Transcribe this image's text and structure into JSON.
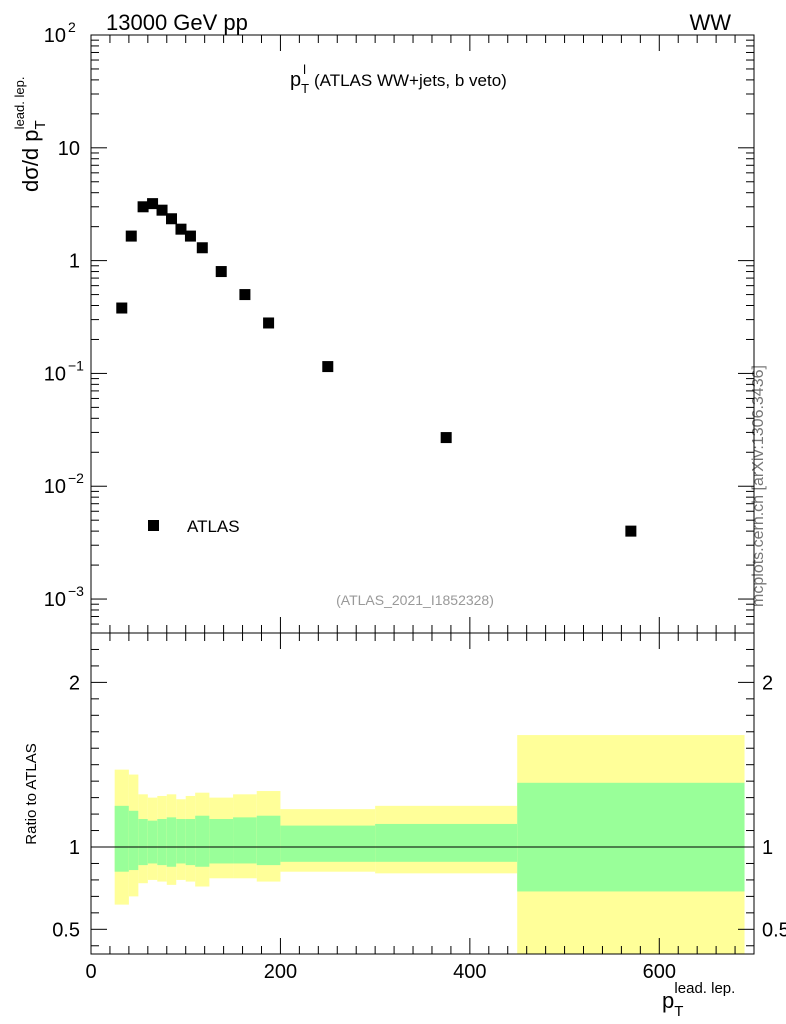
{
  "header": {
    "left": "13000 GeV pp",
    "right": "WW"
  },
  "side_label": "mcplots.cern.ch [arXiv:1306.3436]",
  "chart_data": [
    {
      "type": "scatter",
      "title": "p_T^l (ATLAS WW+jets, b veto)",
      "title_parts": {
        "main": "p",
        "sup": "l",
        "sub": "T",
        "rest": "(ATLAS WW+jets, b veto)"
      },
      "ylabel": "dσ/d p_T^lead. lep.",
      "ylabel_parts": {
        "prefix": "dσ/d p",
        "sup": "lead. lep.",
        "sub": "T"
      },
      "yscale": "log",
      "xlim": [
        0,
        700
      ],
      "ylim": [
        0.0005,
        100
      ],
      "y_ticks": [
        {
          "value": 100,
          "label": "10",
          "exp": "2"
        },
        {
          "value": 10,
          "label": "10",
          "exp": ""
        },
        {
          "value": 1,
          "label": "1",
          "exp": ""
        },
        {
          "value": 0.1,
          "label": "10",
          "exp": "−1"
        },
        {
          "value": 0.01,
          "label": "10",
          "exp": "−2"
        },
        {
          "value": 0.001,
          "label": "10",
          "exp": "−3"
        }
      ],
      "series": [
        {
          "name": "ATLAS",
          "color": "#000000",
          "marker": "square",
          "x": [
            32.5,
            42.5,
            55,
            65,
            75,
            85,
            95,
            105,
            117.5,
            137.5,
            162.5,
            187.5,
            250,
            375,
            570
          ],
          "y": [
            0.38,
            1.65,
            3.0,
            3.2,
            2.8,
            2.35,
            1.9,
            1.65,
            1.3,
            0.8,
            0.5,
            0.28,
            0.115,
            0.027,
            0.004
          ]
        }
      ],
      "legend": {
        "placement": "bottom-left",
        "entries": [
          "ATLAS"
        ]
      },
      "annotation": "(ATLAS_2021_I1852328)",
      "annotation_color": "#999999"
    },
    {
      "type": "area",
      "ylabel": "Ratio to ATLAS",
      "xlabel": "p_T^lead. lep.",
      "xlabel_parts": {
        "prefix": "p",
        "sup": "lead. lep.",
        "sub": "T"
      },
      "xlim": [
        0,
        700
      ],
      "ylim": [
        0.35,
        2.3
      ],
      "x_ticks": [
        0,
        200,
        400,
        600
      ],
      "y_ticks": [
        0.5,
        1,
        2
      ],
      "reference_line": 1.0,
      "bins": [
        {
          "lo": 25,
          "hi": 40,
          "inner": [
            0.85,
            1.25
          ],
          "outer": [
            0.65,
            1.47
          ]
        },
        {
          "lo": 40,
          "hi": 50,
          "inner": [
            0.86,
            1.22
          ],
          "outer": [
            0.7,
            1.44
          ]
        },
        {
          "lo": 50,
          "hi": 60,
          "inner": [
            0.89,
            1.17
          ],
          "outer": [
            0.78,
            1.32
          ]
        },
        {
          "lo": 60,
          "hi": 70,
          "inner": [
            0.9,
            1.16
          ],
          "outer": [
            0.8,
            1.3
          ]
        },
        {
          "lo": 70,
          "hi": 80,
          "inner": [
            0.89,
            1.17
          ],
          "outer": [
            0.79,
            1.31
          ]
        },
        {
          "lo": 80,
          "hi": 90,
          "inner": [
            0.88,
            1.18
          ],
          "outer": [
            0.77,
            1.32
          ]
        },
        {
          "lo": 90,
          "hi": 100,
          "inner": [
            0.9,
            1.17
          ],
          "outer": [
            0.8,
            1.29
          ]
        },
        {
          "lo": 100,
          "hi": 110,
          "inner": [
            0.89,
            1.17
          ],
          "outer": [
            0.79,
            1.31
          ]
        },
        {
          "lo": 110,
          "hi": 125,
          "inner": [
            0.88,
            1.19
          ],
          "outer": [
            0.76,
            1.33
          ]
        },
        {
          "lo": 125,
          "hi": 150,
          "inner": [
            0.9,
            1.17
          ],
          "outer": [
            0.81,
            1.3
          ]
        },
        {
          "lo": 150,
          "hi": 175,
          "inner": [
            0.9,
            1.18
          ],
          "outer": [
            0.81,
            1.32
          ]
        },
        {
          "lo": 175,
          "hi": 200,
          "inner": [
            0.89,
            1.19
          ],
          "outer": [
            0.79,
            1.34
          ]
        },
        {
          "lo": 200,
          "hi": 300,
          "inner": [
            0.91,
            1.13
          ],
          "outer": [
            0.85,
            1.23
          ]
        },
        {
          "lo": 300,
          "hi": 450,
          "inner": [
            0.91,
            1.14
          ],
          "outer": [
            0.84,
            1.25
          ]
        },
        {
          "lo": 450,
          "hi": 690,
          "inner": [
            0.73,
            1.39
          ],
          "outer": [
            0.35,
            1.68
          ]
        }
      ],
      "colors": {
        "inner": "#99ff99",
        "outer": "#ffff99"
      }
    }
  ]
}
